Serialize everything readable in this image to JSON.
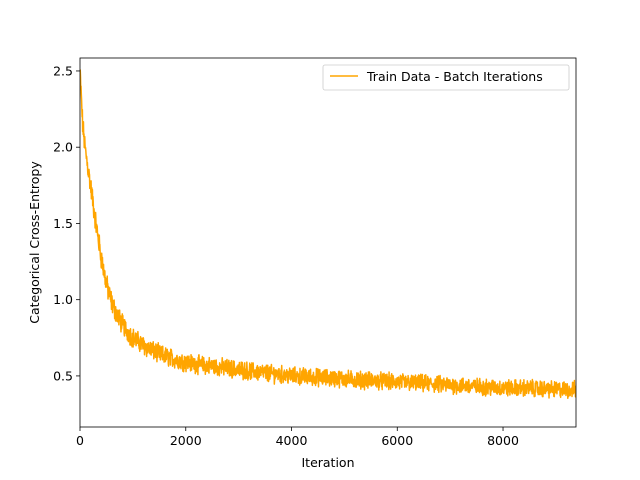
{
  "chart_data": {
    "type": "line",
    "title": "",
    "xlabel": "Iteration",
    "ylabel": "Categorical Cross-Entropy",
    "xlim": [
      0,
      9380
    ],
    "ylim": [
      0.165,
      2.585
    ],
    "x_ticks": [
      0,
      2000,
      4000,
      6000,
      8000
    ],
    "x_tick_labels": [
      "0",
      "2000",
      "4000",
      "6000",
      "8000"
    ],
    "y_ticks": [
      0.5,
      1.0,
      1.5,
      2.0,
      2.5
    ],
    "y_tick_labels": [
      "0.5",
      "1.0",
      "1.5",
      "2.0",
      "2.5"
    ],
    "grid": false,
    "legend_position": "top-right",
    "series": [
      {
        "name": "Train Data - Batch Iterations",
        "color": "#FFA500",
        "x": [
          0,
          50,
          100,
          200,
          300,
          400,
          500,
          600,
          700,
          800,
          900,
          1000,
          1200,
          1400,
          1600,
          1800,
          2000,
          2300,
          2600,
          3000,
          3500,
          4000,
          4500,
          5000,
          5500,
          6000,
          6500,
          7000,
          7500,
          8000,
          8500,
          9000,
          9380
        ],
        "y": [
          2.5,
          2.15,
          1.98,
          1.75,
          1.5,
          1.28,
          1.1,
          0.98,
          0.9,
          0.84,
          0.79,
          0.75,
          0.7,
          0.66,
          0.63,
          0.61,
          0.59,
          0.57,
          0.56,
          0.54,
          0.52,
          0.5,
          0.49,
          0.48,
          0.47,
          0.46,
          0.45,
          0.44,
          0.43,
          0.42,
          0.42,
          0.41,
          0.41
        ],
        "noise_amplitude": 0.06
      }
    ]
  }
}
